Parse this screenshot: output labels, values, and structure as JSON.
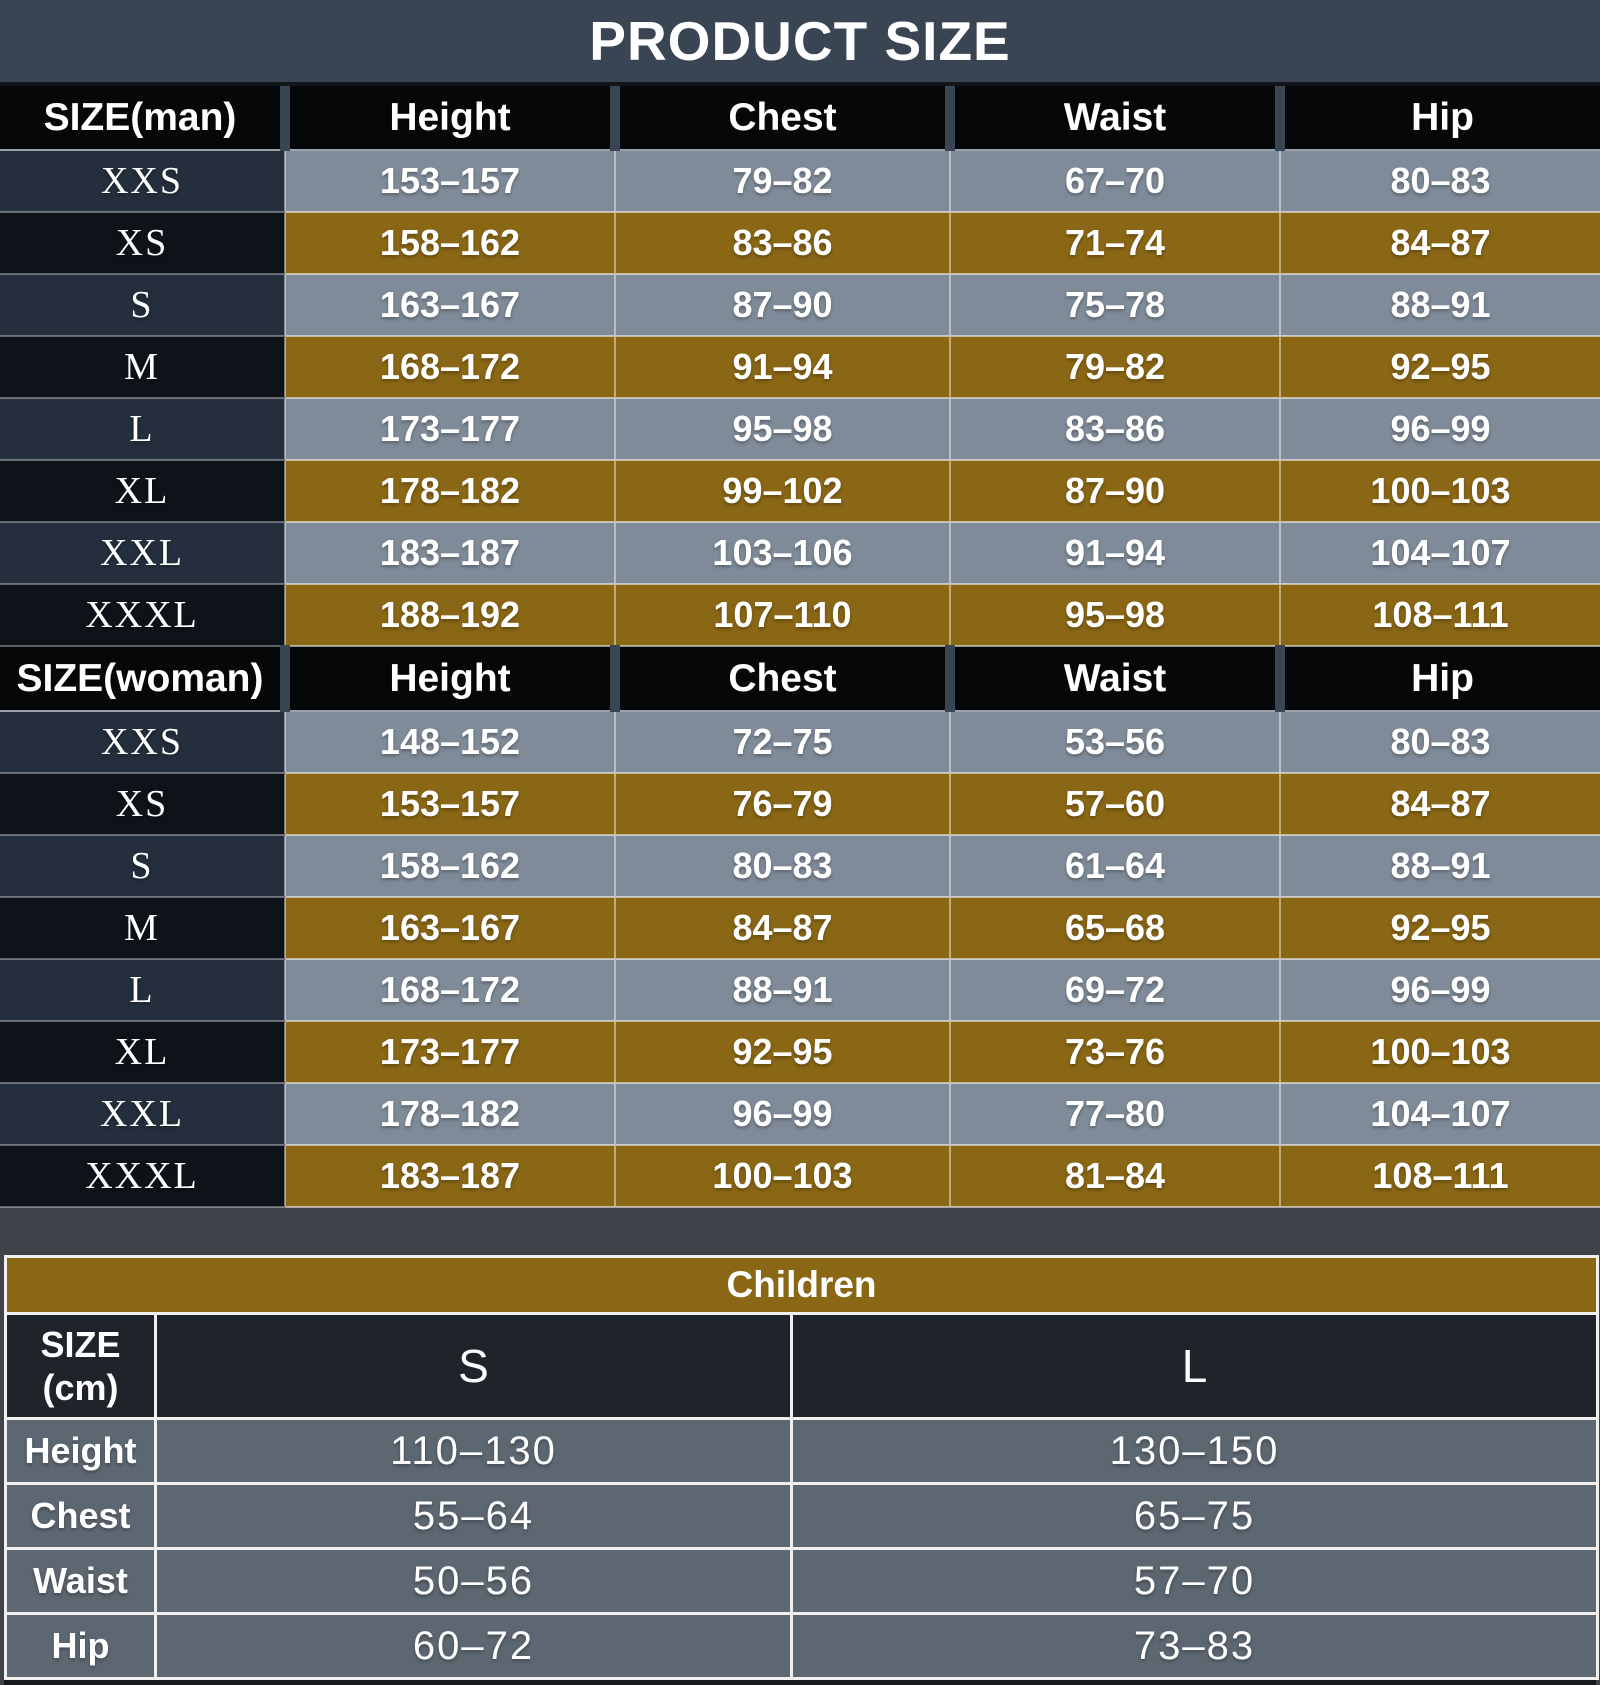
{
  "title": "PRODUCT SIZE",
  "children_size_label": [
    "SIZE",
    "(cm)"
  ],
  "colors": {
    "title_bar": "#3a4553",
    "header_black": "#060708",
    "row_gray": "#7f8b99",
    "row_gold": "#8a6715",
    "size_cell_navy": "#242e3c",
    "size_cell_black": "#0e131a",
    "children_header": "#1f232a",
    "children_row": "#5d6771",
    "gap_background": "#3f444a",
    "text": "#ffffff"
  },
  "chart_data": [
    {
      "type": "table",
      "title": "PRODUCT SIZE",
      "section": "man",
      "columns": [
        "SIZE(man)",
        "Height",
        "Chest",
        "Waist",
        "Hip"
      ],
      "rows": [
        [
          "XXS",
          "153–157",
          "79–82",
          "67–70",
          "80–83"
        ],
        [
          "XS",
          "158–162",
          "83–86",
          "71–74",
          "84–87"
        ],
        [
          "S",
          "163–167",
          "87–90",
          "75–78",
          "88–91"
        ],
        [
          "M",
          "168–172",
          "91–94",
          "79–82",
          "92–95"
        ],
        [
          "L",
          "173–177",
          "95–98",
          "83–86",
          "96–99"
        ],
        [
          "XL",
          "178–182",
          "99–102",
          "87–90",
          "100–103"
        ],
        [
          "XXL",
          "183–187",
          "103–106",
          "91–94",
          "104–107"
        ],
        [
          "XXXL",
          "188–192",
          "107–110",
          "95–98",
          "108–111"
        ]
      ]
    },
    {
      "type": "table",
      "section": "woman",
      "columns": [
        "SIZE(woman)",
        "Height",
        "Chest",
        "Waist",
        "Hip"
      ],
      "rows": [
        [
          "XXS",
          "148–152",
          "72–75",
          "53–56",
          "80–83"
        ],
        [
          "XS",
          "153–157",
          "76–79",
          "57–60",
          "84–87"
        ],
        [
          "S",
          "158–162",
          "80–83",
          "61–64",
          "88–91"
        ],
        [
          "M",
          "163–167",
          "84–87",
          "65–68",
          "92–95"
        ],
        [
          "L",
          "168–172",
          "88–91",
          "69–72",
          "96–99"
        ],
        [
          "XL",
          "173–177",
          "92–95",
          "73–76",
          "100–103"
        ],
        [
          "XXL",
          "178–182",
          "96–99",
          "77–80",
          "104–107"
        ],
        [
          "XXXL",
          "183–187",
          "100–103",
          "81–84",
          "108–111"
        ]
      ]
    },
    {
      "type": "table",
      "section": "children",
      "title": "Children",
      "columns": [
        "SIZE (cm)",
        "S",
        "L"
      ],
      "rows": [
        [
          "Height",
          "110–130",
          "130–150"
        ],
        [
          "Chest",
          "55–64",
          "65–75"
        ],
        [
          "Waist",
          "50–56",
          "57–70"
        ],
        [
          "Hip",
          "60–72",
          "73–83"
        ]
      ]
    }
  ]
}
